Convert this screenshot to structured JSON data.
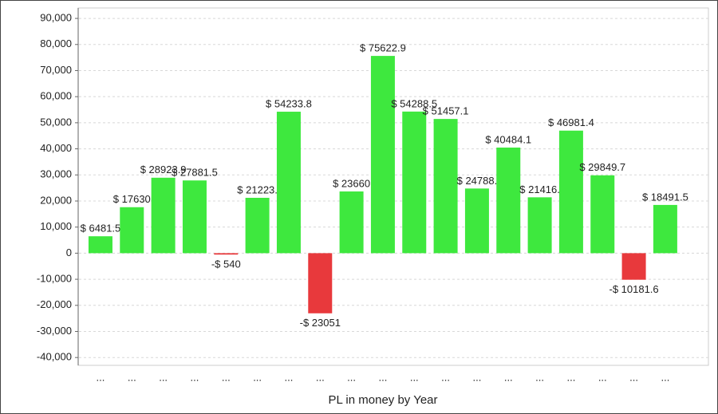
{
  "chart_data": {
    "type": "bar",
    "x_label": "PL in money by Year",
    "categories": [
      "...",
      "...",
      "...",
      "...",
      "...",
      "...",
      "...",
      "...",
      "...",
      "...",
      "...",
      "...",
      "...",
      "...",
      "...",
      "...",
      "...",
      "...",
      "..."
    ],
    "values": [
      6481.5,
      17630,
      28923.9,
      27881.5,
      -540,
      21223,
      54233.8,
      -23051,
      23660,
      75622.9,
      54288.5,
      51457.1,
      24788,
      40484.1,
      21416,
      46981.4,
      29849.7,
      -10181.6,
      18491.5
    ],
    "value_labels": [
      "$ 6481.5",
      "$ 17630",
      "$ 28923.9",
      "$ 27881.5",
      "-$ 540",
      "$ 21223.",
      "$ 54233.8",
      "-$ 23051",
      "$ 23660",
      "$ 75622.9",
      "$ 54288.5",
      "$ 51457.1",
      "$ 24788.",
      "$ 40484.1",
      "$ 21416.",
      "$ 46981.4",
      "$ 29849.7",
      "-$ 10181.6",
      "$ 18491.5"
    ],
    "positive_color": "#3ee83e",
    "negative_color": "#e8393c",
    "ylim": [
      -43000,
      94000
    ],
    "yticks": [
      {
        "value": -40000,
        "label": "-40,000"
      },
      {
        "value": -30000,
        "label": "-30,000"
      },
      {
        "value": -20000,
        "label": "-20,000"
      },
      {
        "value": -10000,
        "label": "-10,000"
      },
      0,
      {
        "value": 10000,
        "label": "10,000"
      },
      {
        "value": 20000,
        "label": "20,000"
      },
      {
        "value": 30000,
        "label": "30,000"
      },
      {
        "value": 40000,
        "label": "40,000"
      },
      {
        "value": 50000,
        "label": "50,000"
      },
      {
        "value": 60000,
        "label": "60,000"
      },
      {
        "value": 70000,
        "label": "70,000"
      },
      {
        "value": 80000,
        "label": "80,000"
      },
      {
        "value": 90000,
        "label": "90,000"
      }
    ],
    "grid": true
  }
}
